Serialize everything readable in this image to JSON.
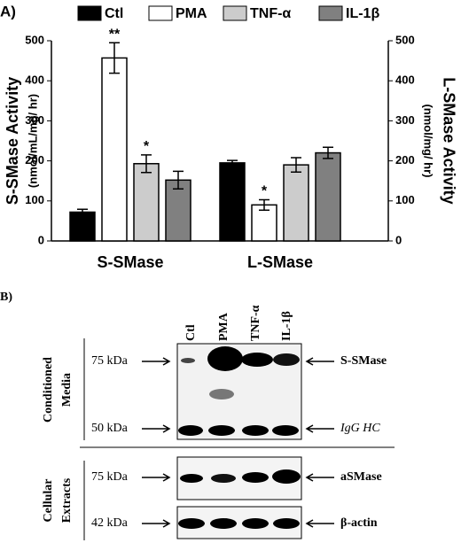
{
  "panel_a_label": "A)",
  "chart_data": {
    "type": "bar",
    "categories": [
      "S-SMase",
      "L-SMase"
    ],
    "category_axis": [
      "y",
      "y2"
    ],
    "series": [
      {
        "name": "Ctl",
        "color": "#000000",
        "values": [
          72,
          195
        ],
        "errors": [
          7,
          6
        ],
        "significance": [
          null,
          null
        ]
      },
      {
        "name": "PMA",
        "color": "#ffffff",
        "values": [
          457,
          90
        ],
        "errors": [
          38,
          13
        ],
        "significance": [
          "**",
          "*"
        ]
      },
      {
        "name": "TNF-α",
        "color": "#cccccc",
        "values": [
          193,
          190
        ],
        "errors": [
          22,
          18
        ],
        "significance": [
          "*",
          null
        ]
      },
      {
        "name": "IL-1β",
        "color": "#808080",
        "values": [
          152,
          220
        ],
        "errors": [
          22,
          14
        ],
        "significance": [
          null,
          null
        ]
      }
    ],
    "ylabel": "S-SMase Activity",
    "ylabel_units": "(nmol/mL/mg/ hr)",
    "y2label": "L-SMase Activity",
    "y2label_units": "(nmol/mg/ hr)",
    "ylim": [
      0,
      500
    ],
    "yticks": [
      0,
      100,
      200,
      300,
      400,
      500
    ],
    "y2lim": [
      0,
      500
    ],
    "y2ticks": [
      0,
      100,
      200,
      300,
      400,
      500
    ]
  },
  "panel_b": {
    "label": "B)",
    "lanes": [
      "Ctl",
      "PMA",
      "TNF-α",
      "IL-1β"
    ],
    "groups": [
      {
        "label": [
          "Conditioned",
          "Media"
        ],
        "markers": [
          "75 kDa",
          "50 kDa"
        ],
        "bands": [
          "S-SMase",
          "IgG HC"
        ]
      },
      {
        "label": [
          "Cellular",
          "Extracts"
        ],
        "markers": [
          "75 kDa",
          "42 kDa"
        ],
        "bands": [
          "aSMase",
          "β-actin"
        ]
      }
    ]
  }
}
